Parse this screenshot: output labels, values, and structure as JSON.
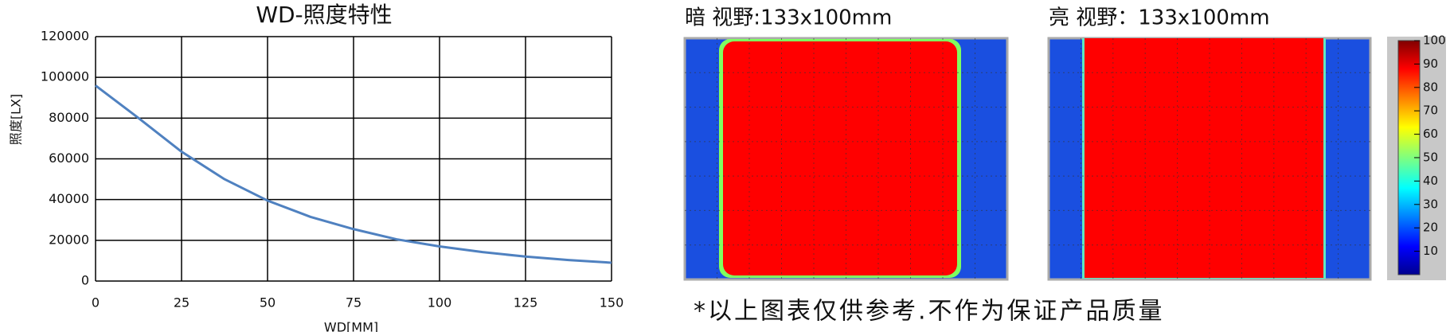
{
  "chart_data": {
    "type": "line",
    "title": "WD-照度特性",
    "x_label": "WD[MM]",
    "y_label": "照度[LX]",
    "x": [
      0,
      12.5,
      25,
      37.5,
      50,
      62.5,
      75,
      87.5,
      100,
      112.5,
      125,
      137.5,
      150
    ],
    "series": [
      {
        "color": "#4f81c0",
        "values": [
          96000,
          80000,
          63500,
          50000,
          39500,
          31500,
          25500,
          20500,
          17000,
          14200,
          12000,
          10300,
          9000
        ]
      }
    ],
    "xlim": [
      0,
      150
    ],
    "xticks": [
      0,
      25,
      50,
      75,
      100,
      125,
      150
    ],
    "ylim": [
      0,
      120000
    ],
    "yticks": [
      0,
      20000,
      40000,
      60000,
      80000,
      100000,
      120000
    ],
    "grid": true
  },
  "heatmaps": [
    {
      "title": "暗  视野:133x100mm"
    },
    {
      "title": "亮  视野：133x100mm"
    }
  ],
  "colorbar": {
    "lim": [
      0,
      100
    ],
    "ticks": [
      10,
      20,
      30,
      40,
      50,
      60,
      70,
      80,
      90,
      100
    ]
  },
  "note": "*以上图表仅供参考.不作为保证产品质量"
}
